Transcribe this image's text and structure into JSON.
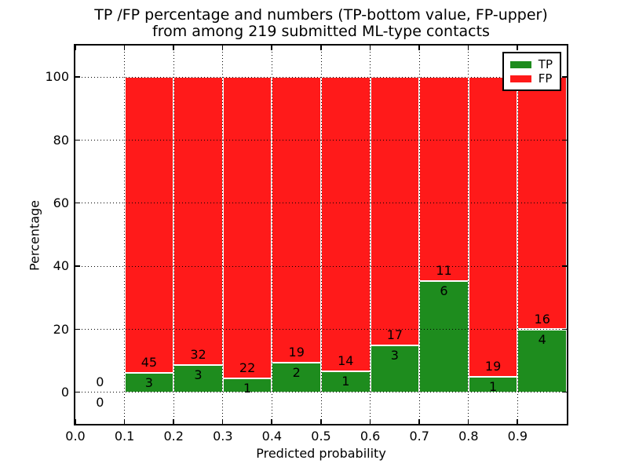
{
  "chart_data": {
    "type": "bar",
    "stacked": true,
    "normalized_height_pct": 100,
    "title_lines": [
      "TP /FP percentage and numbers (TP-bottom value, FP-upper)",
      "from among 219 submitted ML-type contacts"
    ],
    "title": "TP /FP percentage and numbers (TP-bottom value, FP-upper) from among 219 submitted ML-type contacts",
    "total_contacts": 219,
    "xlabel": "Predicted probability",
    "ylabel": "Percentage",
    "xlim": [
      0.0,
      1.0
    ],
    "ylim": [
      -10,
      110
    ],
    "grid": true,
    "legend_position": "upper right",
    "bin_edges": [
      0.0,
      0.1,
      0.2,
      0.3,
      0.4,
      0.5,
      0.6,
      0.7,
      0.8,
      0.9,
      1.0
    ],
    "xtick_labels": [
      "0.0",
      "0.1",
      "0.2",
      "0.3",
      "0.4",
      "0.5",
      "0.6",
      "0.7",
      "0.8",
      "0.9"
    ],
    "xtick_values": [
      0.0,
      0.1,
      0.2,
      0.3,
      0.4,
      0.5,
      0.6,
      0.7,
      0.8,
      0.9
    ],
    "ytick_labels": [
      "0",
      "20",
      "40",
      "60",
      "80",
      "100"
    ],
    "ytick_values": [
      0,
      20,
      40,
      60,
      80,
      100
    ],
    "series": [
      {
        "name": "TP",
        "color": "#1e8c1e",
        "counts": [
          0,
          3,
          3,
          1,
          2,
          1,
          3,
          6,
          1,
          4
        ]
      },
      {
        "name": "FP",
        "color": "#ff1a1a",
        "counts": [
          0,
          45,
          32,
          22,
          19,
          14,
          17,
          11,
          19,
          16
        ]
      }
    ],
    "tp_pct_per_bin": [
      0,
      6.25,
      8.57,
      4.35,
      9.52,
      6.67,
      15.0,
      35.29,
      5.0,
      20.0
    ]
  }
}
